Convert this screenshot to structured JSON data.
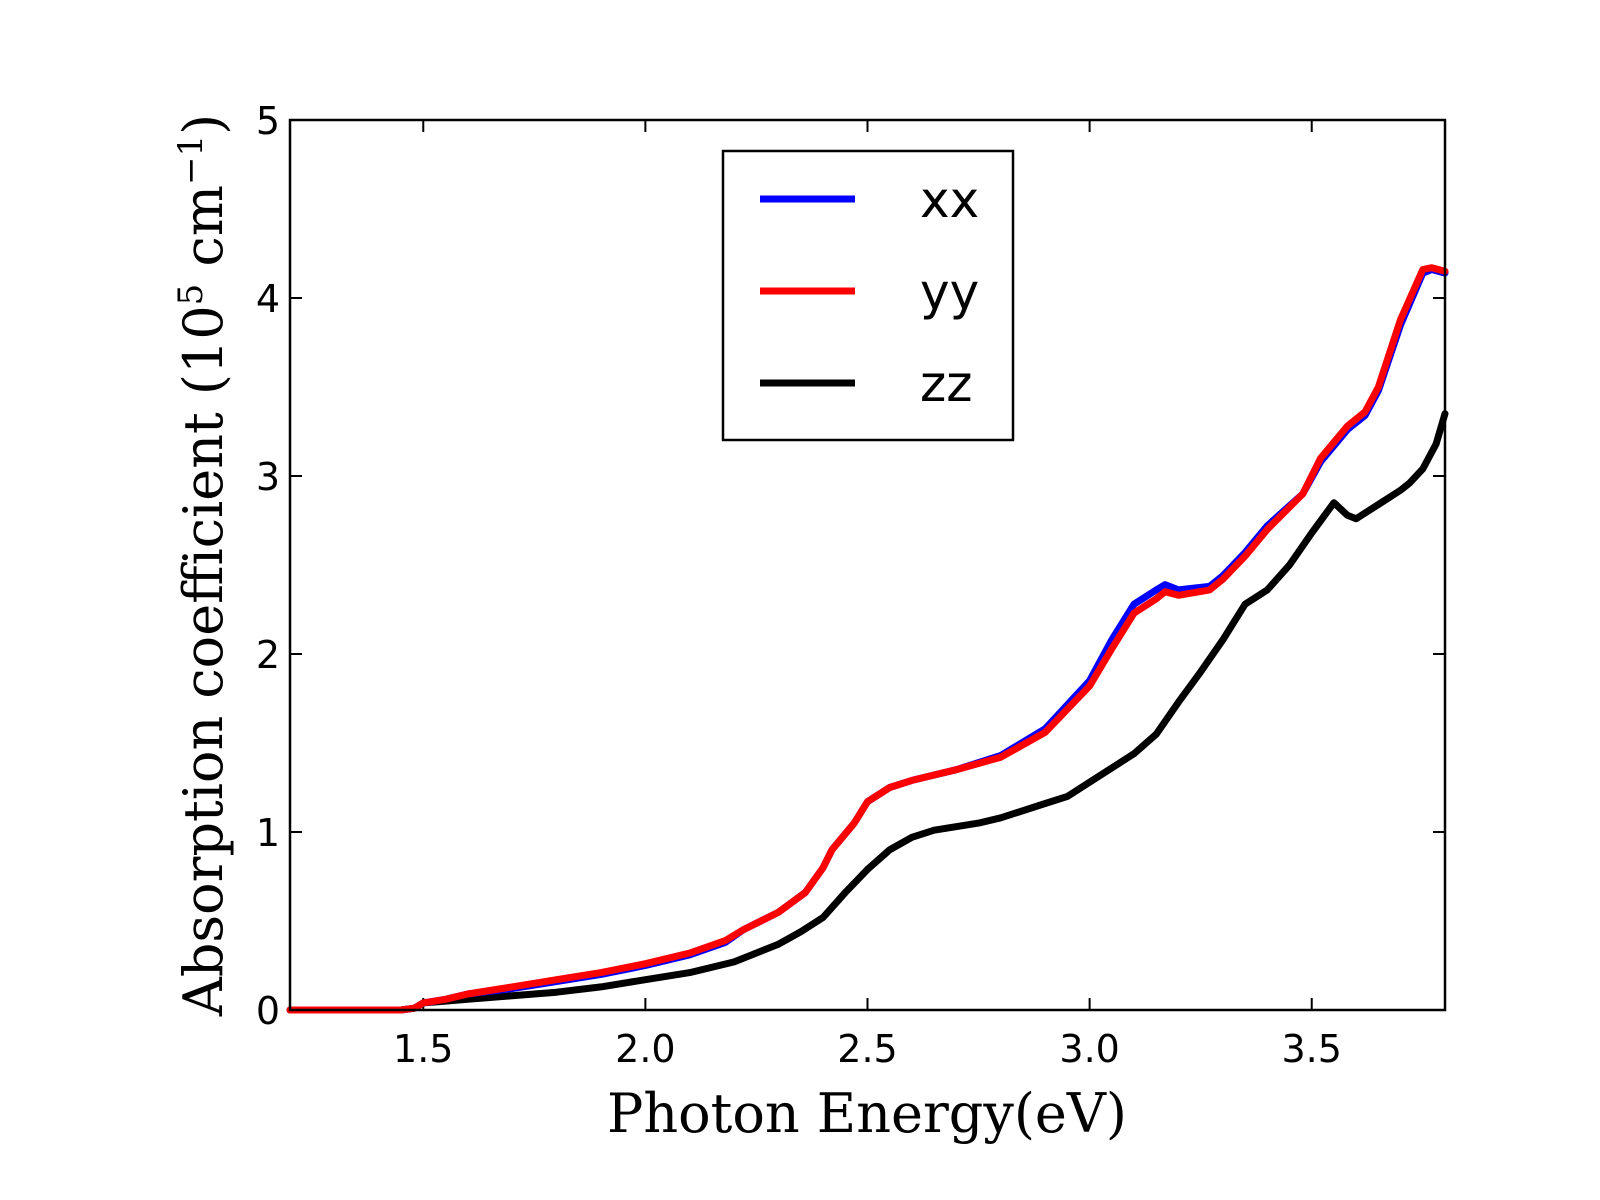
{
  "chart_data": {
    "type": "line",
    "xlabel": "Photon Energy(eV)",
    "ylabel": {
      "prefix": "Absorption coefficient (10",
      "exp1": "5",
      "middle": " cm",
      "exp2": "−1",
      "suffix": ")"
    },
    "xlim": [
      1.2,
      3.8
    ],
    "ylim": [
      0,
      5
    ],
    "xticks": [
      1.5,
      2.0,
      2.5,
      3.0,
      3.5
    ],
    "xtick_labels": [
      "1.5",
      "2.0",
      "2.5",
      "3.0",
      "3.5"
    ],
    "yticks": [
      0,
      1,
      2,
      3,
      4,
      5
    ],
    "ytick_labels": [
      "0",
      "1",
      "2",
      "3",
      "4",
      "5"
    ],
    "grid": false,
    "legend_position": "upper-center",
    "series": [
      {
        "name": "xx",
        "color": "#0000ff",
        "x": [
          1.2,
          1.45,
          1.48,
          1.5,
          1.55,
          1.6,
          1.7,
          1.8,
          1.9,
          2.0,
          2.1,
          2.18,
          2.22,
          2.3,
          2.36,
          2.4,
          2.42,
          2.47,
          2.5,
          2.55,
          2.6,
          2.7,
          2.8,
          2.9,
          3.0,
          3.05,
          3.1,
          3.15,
          3.17,
          3.2,
          3.27,
          3.3,
          3.35,
          3.4,
          3.48,
          3.52,
          3.58,
          3.62,
          3.65,
          3.7,
          3.75,
          3.77,
          3.8
        ],
        "values": [
          0,
          0,
          0.01,
          0.04,
          0.06,
          0.09,
          0.12,
          0.16,
          0.2,
          0.25,
          0.31,
          0.38,
          0.45,
          0.55,
          0.66,
          0.8,
          0.9,
          1.05,
          1.17,
          1.25,
          1.29,
          1.35,
          1.43,
          1.58,
          1.85,
          2.08,
          2.28,
          2.36,
          2.39,
          2.36,
          2.38,
          2.44,
          2.57,
          2.72,
          2.9,
          3.08,
          3.26,
          3.34,
          3.48,
          3.85,
          4.14,
          4.16,
          4.14
        ]
      },
      {
        "name": "yy",
        "color": "#ff0000",
        "x": [
          1.2,
          1.45,
          1.48,
          1.5,
          1.55,
          1.6,
          1.7,
          1.8,
          1.9,
          2.0,
          2.1,
          2.18,
          2.22,
          2.3,
          2.36,
          2.4,
          2.42,
          2.47,
          2.5,
          2.55,
          2.6,
          2.7,
          2.8,
          2.9,
          3.0,
          3.05,
          3.1,
          3.15,
          3.17,
          3.2,
          3.27,
          3.3,
          3.35,
          3.4,
          3.48,
          3.52,
          3.58,
          3.62,
          3.65,
          3.7,
          3.75,
          3.77,
          3.8
        ],
        "values": [
          0,
          0,
          0.01,
          0.04,
          0.06,
          0.09,
          0.13,
          0.17,
          0.21,
          0.26,
          0.32,
          0.39,
          0.45,
          0.55,
          0.66,
          0.8,
          0.9,
          1.05,
          1.17,
          1.25,
          1.29,
          1.35,
          1.42,
          1.56,
          1.82,
          2.03,
          2.23,
          2.31,
          2.35,
          2.33,
          2.36,
          2.42,
          2.55,
          2.7,
          2.9,
          3.1,
          3.28,
          3.36,
          3.5,
          3.88,
          4.16,
          4.17,
          4.15
        ]
      },
      {
        "name": "zz",
        "color": "#000000",
        "x": [
          1.2,
          1.45,
          1.48,
          1.5,
          1.55,
          1.6,
          1.7,
          1.8,
          1.9,
          2.0,
          2.1,
          2.2,
          2.3,
          2.35,
          2.4,
          2.45,
          2.5,
          2.55,
          2.6,
          2.65,
          2.75,
          2.8,
          2.9,
          2.95,
          3.0,
          3.1,
          3.15,
          3.2,
          3.25,
          3.3,
          3.35,
          3.4,
          3.45,
          3.5,
          3.55,
          3.58,
          3.6,
          3.65,
          3.7,
          3.72,
          3.75,
          3.78,
          3.8
        ],
        "values": [
          0,
          0,
          0.01,
          0.04,
          0.05,
          0.06,
          0.08,
          0.1,
          0.13,
          0.17,
          0.21,
          0.27,
          0.37,
          0.44,
          0.52,
          0.66,
          0.79,
          0.9,
          0.97,
          1.01,
          1.05,
          1.08,
          1.16,
          1.2,
          1.28,
          1.44,
          1.55,
          1.73,
          1.9,
          2.08,
          2.28,
          2.36,
          2.5,
          2.68,
          2.85,
          2.78,
          2.76,
          2.84,
          2.92,
          2.96,
          3.04,
          3.18,
          3.35
        ]
      }
    ]
  }
}
